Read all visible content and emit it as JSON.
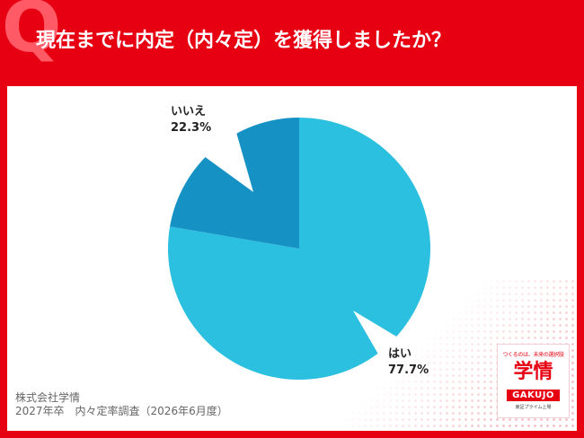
{
  "header": {
    "q_mark": "Q",
    "title": "現在までに内定（内々定）を獲得しましたか？"
  },
  "chart_data": {
    "type": "pie",
    "title": "現在までに内定（内々定）を獲得しましたか？",
    "series": [
      {
        "label": "はい",
        "value": 77.7,
        "value_label": "77.7%",
        "color": "#2bbfe0"
      },
      {
        "label": "いいえ",
        "value": 22.3,
        "value_label": "22.3%",
        "color": "#1591c4"
      }
    ],
    "start_angle_deg": 0,
    "direction": "clockwise"
  },
  "source": {
    "line1": "株式会社学情",
    "line2": "2027年卒　内々定率調査（2026年6月度）"
  },
  "logo": {
    "tagline": "つくるのは、未来の選択肢",
    "mark": "学情",
    "wordmark": "GAKUJO",
    "sub": "東証プライム上場"
  },
  "colors": {
    "background": "#e60012",
    "panel": "#ffffff",
    "text": "#222222"
  }
}
